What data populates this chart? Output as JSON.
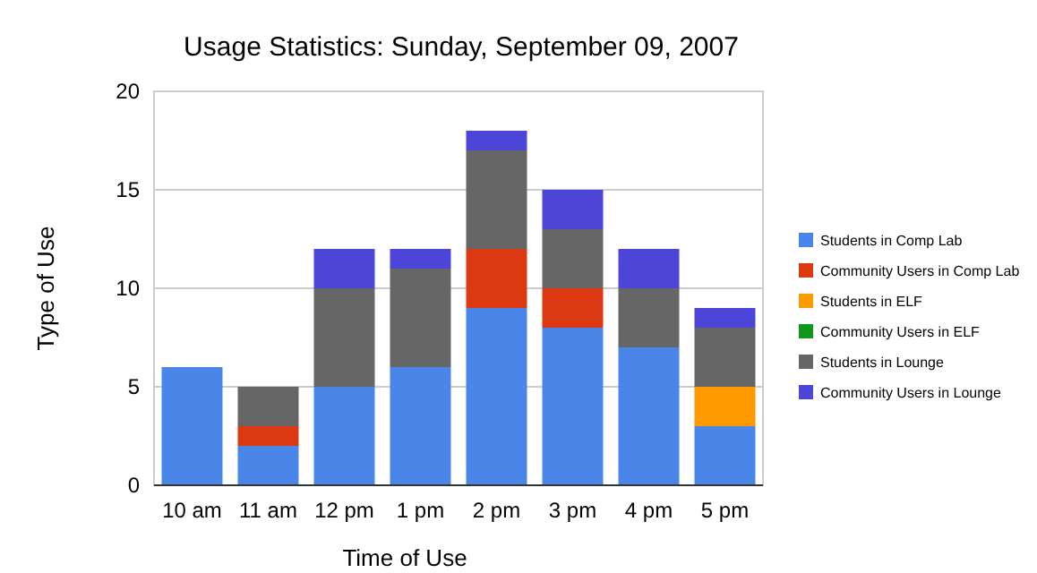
{
  "chart_data": {
    "type": "bar",
    "title": "Usage Statistics: Sunday, September 09, 2007",
    "xlabel": "Time of Use",
    "ylabel": "Type of Use",
    "categories": [
      "10 am",
      "11 am",
      "12 pm",
      "1 pm",
      "2 pm",
      "3 pm",
      "4 pm",
      "5 pm"
    ],
    "stacked": true,
    "ylim": [
      0,
      20
    ],
    "yticks": [
      0,
      5,
      10,
      15,
      20
    ],
    "grid": "y",
    "legend": "right",
    "series": [
      {
        "name": "Students in Comp Lab",
        "color": "#4a86e8",
        "values": [
          6,
          2,
          5,
          6,
          9,
          8,
          7,
          3
        ]
      },
      {
        "name": "Community Users in Comp Lab",
        "color": "#dc3912",
        "values": [
          0,
          1,
          0,
          0,
          3,
          2,
          0,
          0
        ]
      },
      {
        "name": "Students in ELF",
        "color": "#ff9900",
        "values": [
          0,
          0,
          0,
          0,
          0,
          0,
          0,
          2
        ]
      },
      {
        "name": "Community Users in ELF",
        "color": "#109618",
        "values": [
          0,
          0,
          0,
          0,
          0,
          0,
          0,
          0
        ]
      },
      {
        "name": "Students in Lounge",
        "color": "#666666",
        "values": [
          0,
          2,
          5,
          5,
          5,
          3,
          3,
          3
        ]
      },
      {
        "name": "Community Users in Lounge",
        "color": "#4d44d8",
        "values": [
          0,
          0,
          2,
          1,
          1,
          2,
          2,
          1
        ]
      }
    ]
  }
}
